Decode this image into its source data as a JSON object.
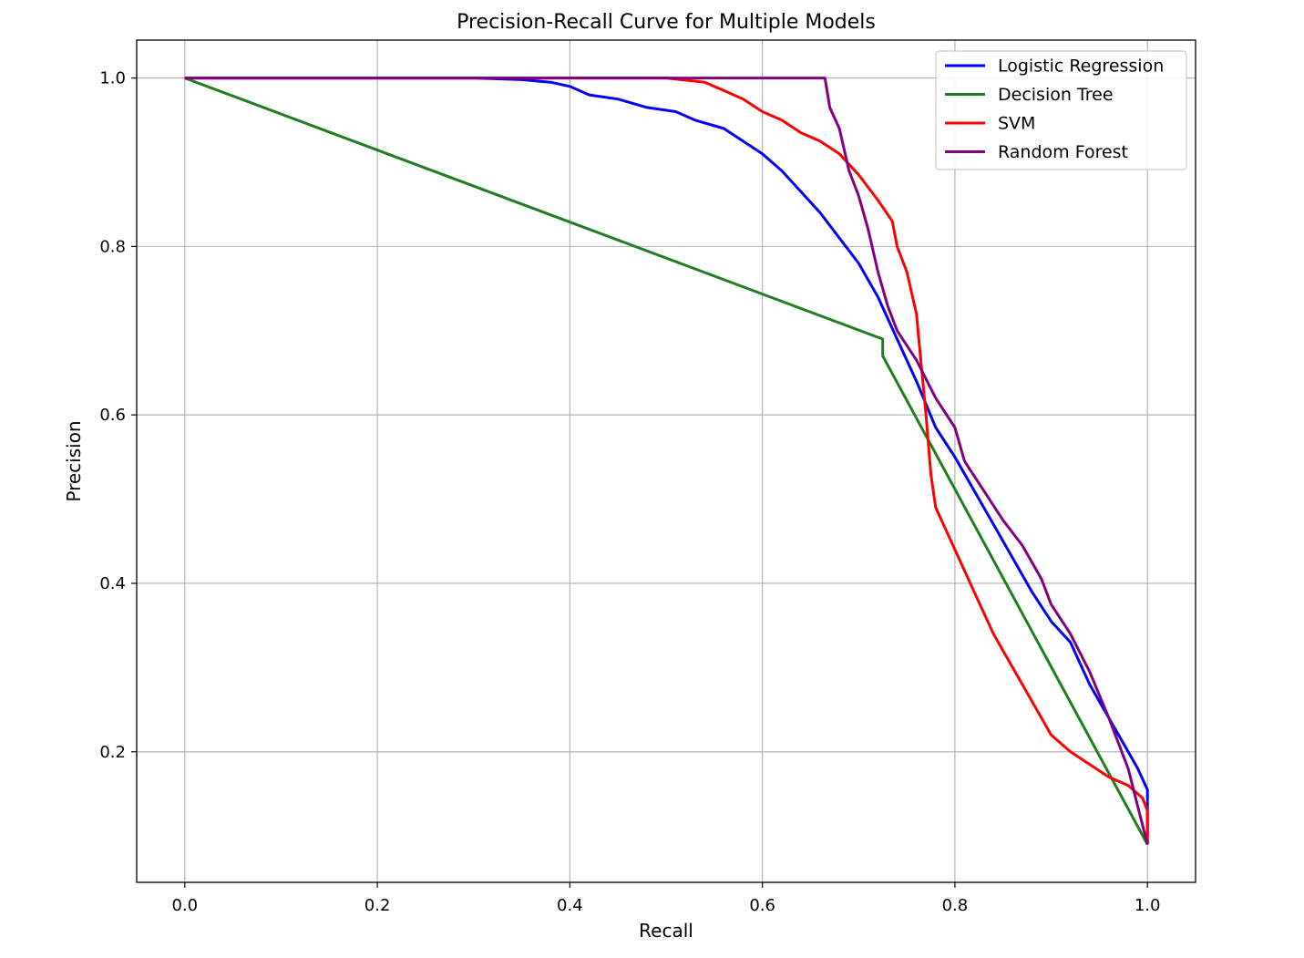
{
  "chart_data": {
    "type": "line",
    "title": "Precision-Recall Curve for Multiple Models",
    "xlabel": "Recall",
    "ylabel": "Precision",
    "xlim": [
      -0.05,
      1.05
    ],
    "ylim": [
      0.045,
      1.045
    ],
    "xticks": [
      0.0,
      0.2,
      0.4,
      0.6,
      0.8,
      1.0
    ],
    "xtick_labels": [
      "0.0",
      "0.2",
      "0.4",
      "0.6",
      "0.8",
      "1.0"
    ],
    "yticks": [
      0.2,
      0.4,
      0.6,
      0.8,
      1.0
    ],
    "ytick_labels": [
      "0.2",
      "0.4",
      "0.6",
      "0.8",
      "1.0"
    ],
    "grid": true,
    "legend_position": "top-right",
    "series": [
      {
        "name": "Logistic Regression",
        "color": "#0000ff",
        "points": [
          [
            0.0,
            1.0
          ],
          [
            0.3,
            1.0
          ],
          [
            0.35,
            0.998
          ],
          [
            0.38,
            0.995
          ],
          [
            0.4,
            0.99
          ],
          [
            0.42,
            0.98
          ],
          [
            0.45,
            0.975
          ],
          [
            0.48,
            0.965
          ],
          [
            0.51,
            0.96
          ],
          [
            0.53,
            0.95
          ],
          [
            0.56,
            0.94
          ],
          [
            0.58,
            0.925
          ],
          [
            0.6,
            0.91
          ],
          [
            0.62,
            0.89
          ],
          [
            0.64,
            0.865
          ],
          [
            0.66,
            0.84
          ],
          [
            0.68,
            0.81
          ],
          [
            0.7,
            0.78
          ],
          [
            0.72,
            0.74
          ],
          [
            0.74,
            0.69
          ],
          [
            0.76,
            0.64
          ],
          [
            0.78,
            0.585
          ],
          [
            0.8,
            0.55
          ],
          [
            0.82,
            0.51
          ],
          [
            0.84,
            0.47
          ],
          [
            0.86,
            0.43
          ],
          [
            0.88,
            0.39
          ],
          [
            0.9,
            0.355
          ],
          [
            0.92,
            0.33
          ],
          [
            0.94,
            0.28
          ],
          [
            0.96,
            0.24
          ],
          [
            0.98,
            0.2
          ],
          [
            0.99,
            0.18
          ],
          [
            1.0,
            0.155
          ],
          [
            1.0,
            0.09
          ]
        ]
      },
      {
        "name": "Decision Tree",
        "color": "#1f7f1f",
        "points": [
          [
            0.0,
            1.0
          ],
          [
            0.725,
            0.69
          ],
          [
            0.725,
            0.67
          ],
          [
            1.0,
            0.09
          ]
        ]
      },
      {
        "name": "SVM",
        "color": "#ff0000",
        "points": [
          [
            0.0,
            1.0
          ],
          [
            0.5,
            1.0
          ],
          [
            0.54,
            0.995
          ],
          [
            0.56,
            0.985
          ],
          [
            0.58,
            0.975
          ],
          [
            0.6,
            0.96
          ],
          [
            0.62,
            0.95
          ],
          [
            0.64,
            0.935
          ],
          [
            0.66,
            0.925
          ],
          [
            0.68,
            0.91
          ],
          [
            0.7,
            0.885
          ],
          [
            0.72,
            0.855
          ],
          [
            0.735,
            0.83
          ],
          [
            0.74,
            0.8
          ],
          [
            0.75,
            0.77
          ],
          [
            0.76,
            0.72
          ],
          [
            0.765,
            0.66
          ],
          [
            0.77,
            0.6
          ],
          [
            0.775,
            0.53
          ],
          [
            0.78,
            0.49
          ],
          [
            0.8,
            0.44
          ],
          [
            0.82,
            0.39
          ],
          [
            0.84,
            0.34
          ],
          [
            0.86,
            0.3
          ],
          [
            0.88,
            0.26
          ],
          [
            0.9,
            0.22
          ],
          [
            0.92,
            0.2
          ],
          [
            0.94,
            0.185
          ],
          [
            0.96,
            0.17
          ],
          [
            0.98,
            0.16
          ],
          [
            0.995,
            0.145
          ],
          [
            1.0,
            0.13
          ],
          [
            1.0,
            0.09
          ]
        ]
      },
      {
        "name": "Random Forest",
        "color": "#800080",
        "points": [
          [
            0.0,
            1.0
          ],
          [
            0.665,
            1.0
          ],
          [
            0.67,
            0.965
          ],
          [
            0.68,
            0.94
          ],
          [
            0.69,
            0.89
          ],
          [
            0.7,
            0.86
          ],
          [
            0.71,
            0.82
          ],
          [
            0.72,
            0.77
          ],
          [
            0.73,
            0.73
          ],
          [
            0.74,
            0.7
          ],
          [
            0.76,
            0.665
          ],
          [
            0.78,
            0.62
          ],
          [
            0.8,
            0.585
          ],
          [
            0.81,
            0.545
          ],
          [
            0.83,
            0.51
          ],
          [
            0.85,
            0.475
          ],
          [
            0.87,
            0.445
          ],
          [
            0.89,
            0.405
          ],
          [
            0.9,
            0.375
          ],
          [
            0.92,
            0.34
          ],
          [
            0.94,
            0.295
          ],
          [
            0.96,
            0.24
          ],
          [
            0.98,
            0.18
          ],
          [
            0.99,
            0.135
          ],
          [
            1.0,
            0.09
          ]
        ]
      }
    ]
  }
}
